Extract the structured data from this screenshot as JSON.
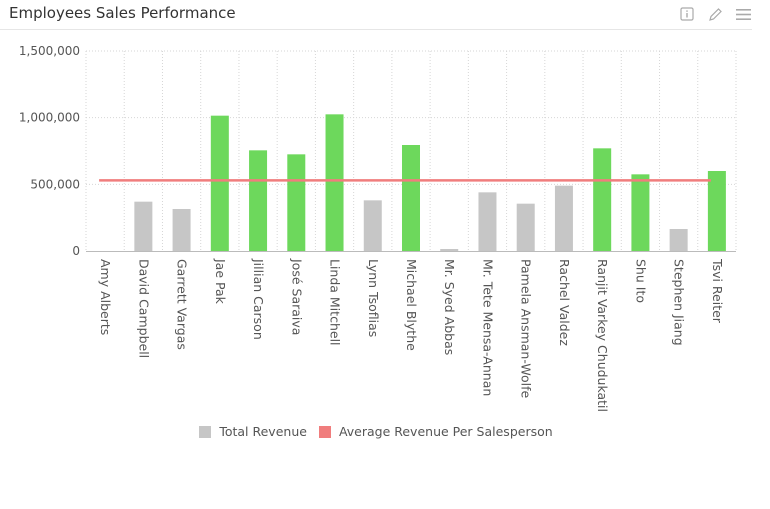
{
  "header": {
    "title": "Employees Sales Performance",
    "info_icon": "info-icon",
    "edit_icon": "pencil-icon",
    "menu_icon": "hamburger-menu-icon"
  },
  "colors": {
    "above_average": "#6dd85c",
    "below_average": "#c6c6c6",
    "average_line": "#f07d7d",
    "grid": "#d6d6d6",
    "axis_text": "#555555"
  },
  "legend": {
    "total_revenue": "Total Revenue",
    "average": "Average Revenue Per Salesperson"
  },
  "chart_data": {
    "type": "bar",
    "title": "Employees Sales Performance",
    "xlabel": "",
    "ylabel": "",
    "ylim": [
      0,
      1500000
    ],
    "y_ticks": [
      "0",
      "500,000",
      "1,000,000",
      "1,500,000"
    ],
    "y_tick_values": [
      0,
      500000,
      1000000,
      1500000
    ],
    "categories": [
      "Amy Alberts",
      "David Campbell",
      "Garrett Vargas",
      "Jae Pak",
      "Jillian Carson",
      "José Saraiva",
      "Linda Mitchell",
      "Lynn Tsoflias",
      "Michael Blythe",
      "Mr. Syed Abbas",
      "Mr. Tete Mensa-Annan",
      "Pamela Ansman-Wolfe",
      "Rachel Valdez",
      "Ranjit Varkey Chudukatil",
      "Shu Ito",
      "Stephen Jiang",
      "Tsvi Reiter"
    ],
    "series": [
      {
        "name": "Total Revenue",
        "type": "bar",
        "values": [
          0,
          370000,
          315000,
          1015000,
          755000,
          725000,
          1025000,
          380000,
          795000,
          15000,
          440000,
          355000,
          490000,
          770000,
          575000,
          165000,
          600000
        ]
      },
      {
        "name": "Average Revenue Per Salesperson",
        "type": "line",
        "values": [
          530000,
          530000,
          530000,
          530000,
          530000,
          530000,
          530000,
          530000,
          530000,
          530000,
          530000,
          530000,
          530000,
          530000,
          530000,
          530000,
          530000
        ]
      }
    ],
    "grid": true,
    "legend_position": "bottom"
  }
}
